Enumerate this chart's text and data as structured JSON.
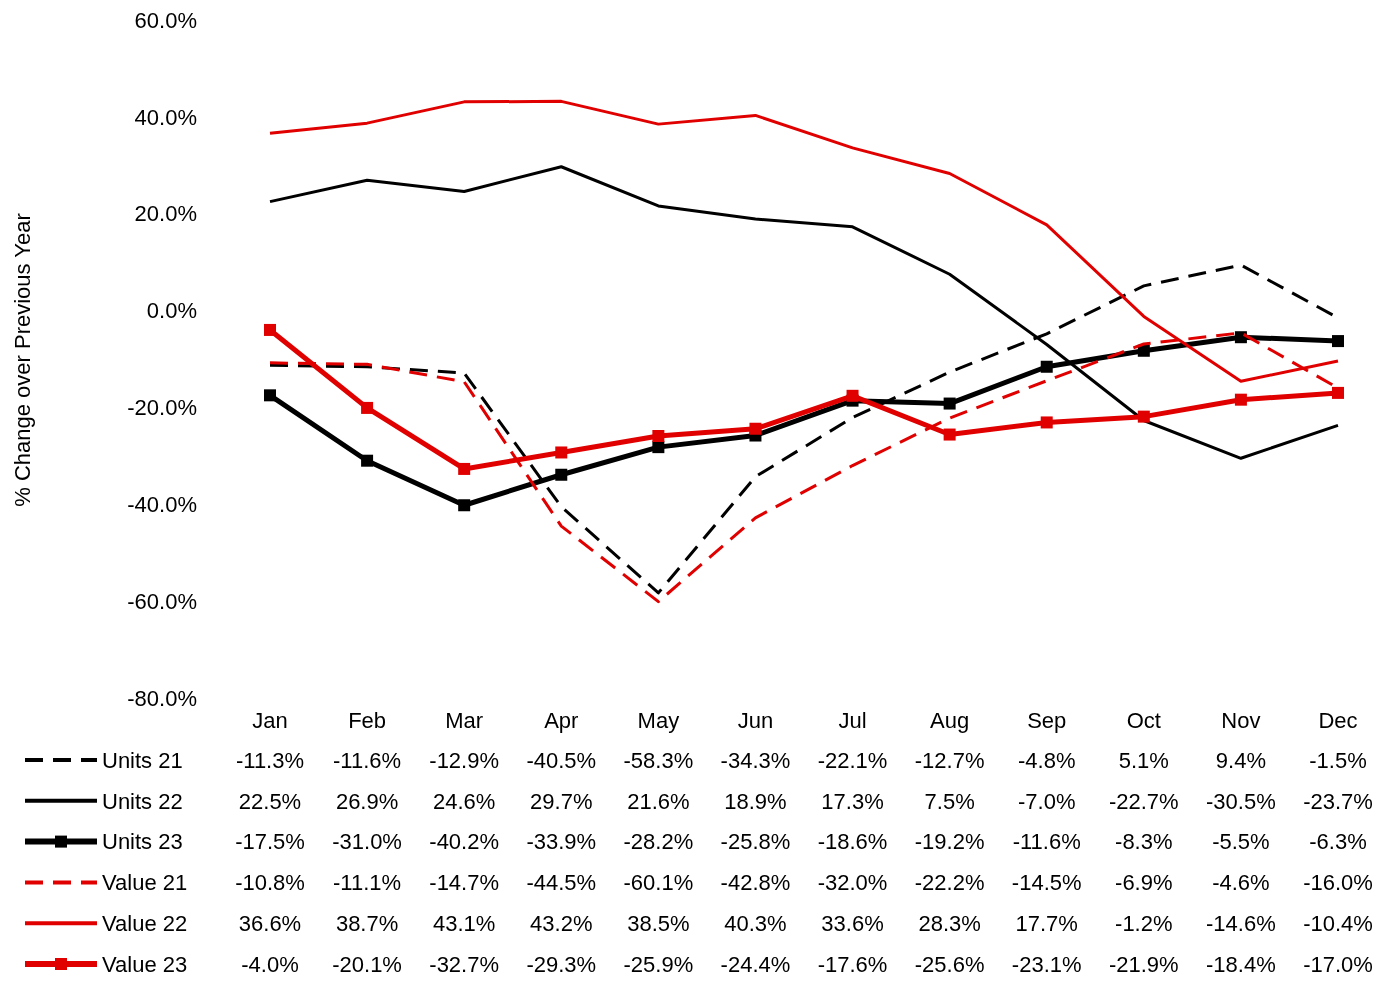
{
  "chart_data": {
    "type": "line",
    "ylabel": "% Change over Previous Year",
    "categories": [
      "Jan",
      "Feb",
      "Mar",
      "Apr",
      "May",
      "Jun",
      "Jul",
      "Aug",
      "Sep",
      "Oct",
      "Nov",
      "Dec"
    ],
    "ylim": [
      -80,
      60
    ],
    "yticks": [
      {
        "value": -80,
        "label": "-80.0%"
      },
      {
        "value": -60,
        "label": "-60.0%"
      },
      {
        "value": -40,
        "label": "-40.0%"
      },
      {
        "value": -20,
        "label": "-20.0%"
      },
      {
        "value": 0,
        "label": "0.0%"
      },
      {
        "value": 20,
        "label": "20.0%"
      },
      {
        "value": 40,
        "label": "40.0%"
      },
      {
        "value": 60,
        "label": "60.0%"
      }
    ],
    "grid": false,
    "legend": "bottom",
    "series": [
      {
        "name": "Units 21",
        "color": "#000000",
        "line_style": "dashed",
        "marker": "none",
        "values": [
          -11.3,
          -11.6,
          -12.9,
          -40.5,
          -58.3,
          -34.3,
          -22.1,
          -12.7,
          -4.8,
          5.1,
          9.4,
          -1.5
        ],
        "value_labels": [
          "-11.3%",
          "-11.6%",
          "-12.9%",
          "-40.5%",
          "-58.3%",
          "-34.3%",
          "-22.1%",
          "-12.7%",
          "-4.8%",
          "5.1%",
          "9.4%",
          "-1.5%"
        ]
      },
      {
        "name": "Units 22",
        "color": "#000000",
        "line_style": "solid",
        "marker": "none",
        "values": [
          22.5,
          26.9,
          24.6,
          29.7,
          21.6,
          18.9,
          17.3,
          7.5,
          -7.0,
          -22.7,
          -30.5,
          -23.7
        ],
        "value_labels": [
          "22.5%",
          "26.9%",
          "24.6%",
          "29.7%",
          "21.6%",
          "18.9%",
          "17.3%",
          "7.5%",
          "-7.0%",
          "-22.7%",
          "-30.5%",
          "-23.7%"
        ]
      },
      {
        "name": "Units 23",
        "color": "#000000",
        "line_style": "solid",
        "marker": "square",
        "values": [
          -17.5,
          -31.0,
          -40.2,
          -33.9,
          -28.2,
          -25.8,
          -18.6,
          -19.2,
          -11.6,
          -8.3,
          -5.5,
          -6.3
        ],
        "value_labels": [
          "-17.5%",
          "-31.0%",
          "-40.2%",
          "-33.9%",
          "-28.2%",
          "-25.8%",
          "-18.6%",
          "-19.2%",
          "-11.6%",
          "-8.3%",
          "-5.5%",
          "-6.3%"
        ]
      },
      {
        "name": "Value 21",
        "color": "#e00000",
        "line_style": "dashed",
        "marker": "none",
        "values": [
          -10.8,
          -11.1,
          -14.7,
          -44.5,
          -60.1,
          -42.8,
          -32.0,
          -22.2,
          -14.5,
          -6.9,
          -4.6,
          -16.0
        ],
        "value_labels": [
          "-10.8%",
          "-11.1%",
          "-14.7%",
          "-44.5%",
          "-60.1%",
          "-42.8%",
          "-32.0%",
          "-22.2%",
          "-14.5%",
          "-6.9%",
          "-4.6%",
          "-16.0%"
        ]
      },
      {
        "name": "Value 22",
        "color": "#e00000",
        "line_style": "solid",
        "marker": "none",
        "values": [
          36.6,
          38.7,
          43.1,
          43.2,
          38.5,
          40.3,
          33.6,
          28.3,
          17.7,
          -1.2,
          -14.6,
          -10.4
        ],
        "value_labels": [
          "36.6%",
          "38.7%",
          "43.1%",
          "43.2%",
          "38.5%",
          "40.3%",
          "33.6%",
          "28.3%",
          "17.7%",
          "-1.2%",
          "-14.6%",
          "-10.4%"
        ]
      },
      {
        "name": "Value 23",
        "color": "#e00000",
        "line_style": "solid",
        "marker": "square",
        "values": [
          -4.0,
          -20.1,
          -32.7,
          -29.3,
          -25.9,
          -24.4,
          -17.6,
          -25.6,
          -23.1,
          -21.9,
          -18.4,
          -17.0
        ],
        "value_labels": [
          "-4.0%",
          "-20.1%",
          "-32.7%",
          "-29.3%",
          "-25.9%",
          "-24.4%",
          "-17.6%",
          "-25.6%",
          "-23.1%",
          "-21.9%",
          "-18.4%",
          "-17.0%"
        ]
      }
    ]
  }
}
